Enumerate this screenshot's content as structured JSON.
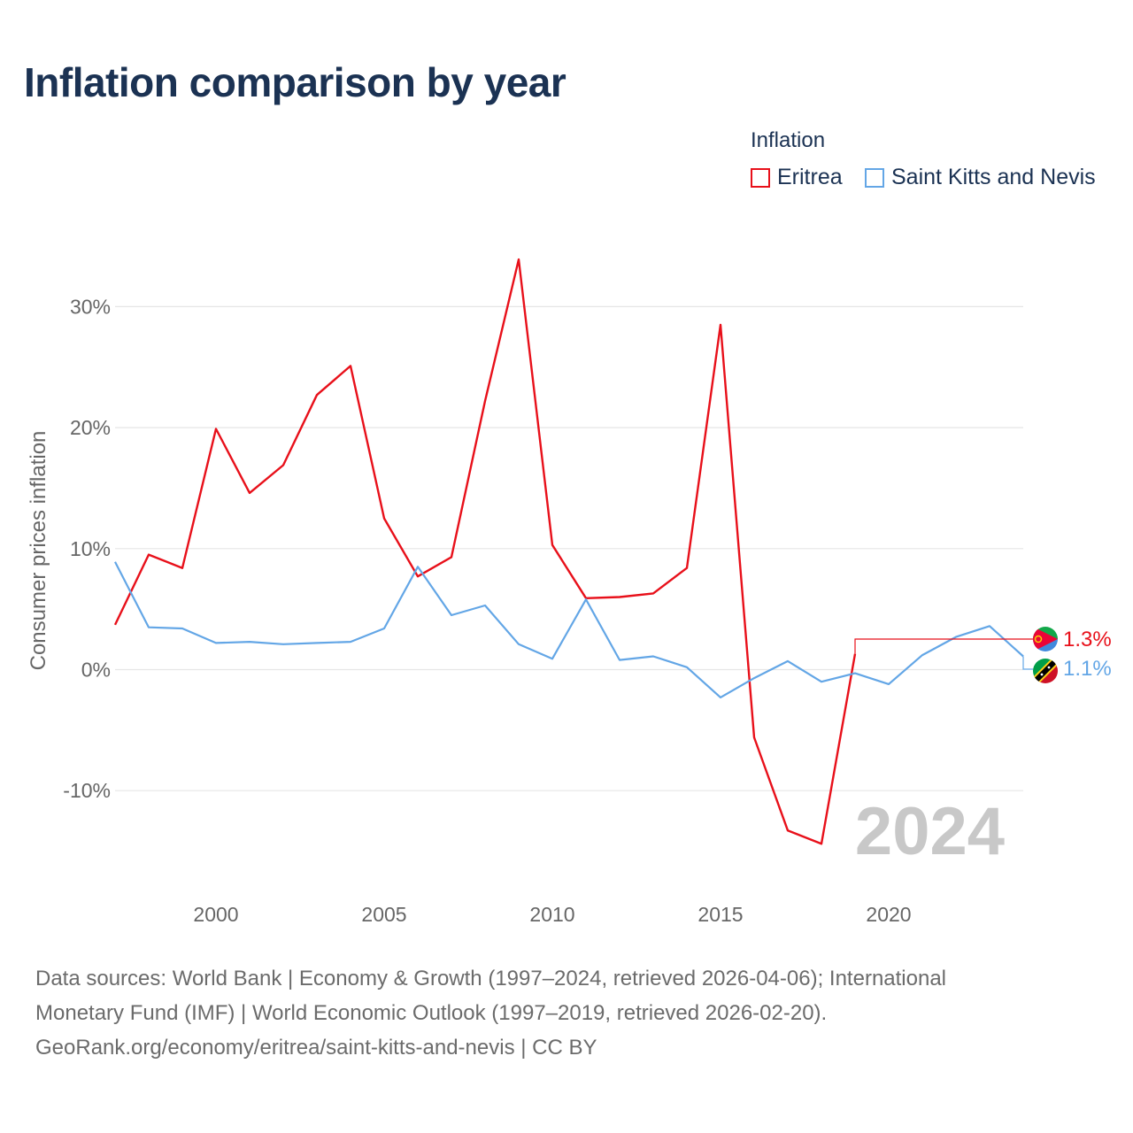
{
  "title": "Inflation comparison by year",
  "legend": {
    "title": "Inflation",
    "items": [
      {
        "label": "Eritrea",
        "color": "#e8101a"
      },
      {
        "label": "Saint Kitts and Nevis",
        "color": "#63a6e6"
      }
    ]
  },
  "chart_data": {
    "type": "line",
    "title": "Inflation comparison by year",
    "xlabel": "",
    "ylabel": "Consumer prices inflation",
    "xlim": [
      1997,
      2024
    ],
    "ylim": [
      -15.5,
      36
    ],
    "grid": true,
    "x_ticks": [
      2000,
      2005,
      2010,
      2015,
      2020
    ],
    "y_ticks": [
      {
        "value": 30,
        "label": "30%"
      },
      {
        "value": 20,
        "label": "20%"
      },
      {
        "value": 10,
        "label": "10%"
      },
      {
        "value": 0,
        "label": "0%"
      },
      {
        "value": -10,
        "label": "-10%"
      }
    ],
    "year_watermark": "2024",
    "series": [
      {
        "name": "Eritrea",
        "color": "#e8101a",
        "x": [
          1997,
          1998,
          1999,
          2000,
          2001,
          2002,
          2003,
          2004,
          2005,
          2006,
          2007,
          2008,
          2009,
          2010,
          2011,
          2012,
          2013,
          2014,
          2015,
          2016,
          2017,
          2018,
          2019
        ],
        "values": [
          3.7,
          9.5,
          8.4,
          19.9,
          14.6,
          16.9,
          22.7,
          25.1,
          12.5,
          7.7,
          9.3,
          22.2,
          33.9,
          10.3,
          5.9,
          6.0,
          6.3,
          8.4,
          28.5,
          -5.6,
          -13.3,
          -14.4,
          1.3
        ],
        "end_label": "1.3%"
      },
      {
        "name": "Saint Kitts and Nevis",
        "color": "#63a6e6",
        "x": [
          1997,
          1998,
          1999,
          2000,
          2001,
          2002,
          2003,
          2004,
          2005,
          2006,
          2007,
          2008,
          2009,
          2010,
          2011,
          2012,
          2013,
          2014,
          2015,
          2016,
          2017,
          2018,
          2019,
          2020,
          2021,
          2022,
          2023,
          2024
        ],
        "values": [
          8.9,
          3.5,
          3.4,
          2.2,
          2.3,
          2.1,
          2.2,
          2.3,
          3.4,
          8.5,
          4.5,
          5.3,
          2.1,
          0.9,
          5.8,
          0.8,
          1.1,
          0.2,
          -2.3,
          -0.7,
          0.7,
          -1.0,
          -0.3,
          -1.2,
          1.2,
          2.7,
          3.6,
          1.1
        ],
        "end_label": "1.1%"
      }
    ]
  },
  "footer": {
    "line1": "Data sources: World Bank | Economy & Growth (1997–2024, retrieved 2026-04-06); International",
    "line2": "Monetary Fund (IMF) | World Economic Outlook (1997–2019, retrieved 2026-02-20).",
    "line3": "GeoRank.org/economy/eritrea/saint-kitts-and-nevis | CC BY"
  }
}
